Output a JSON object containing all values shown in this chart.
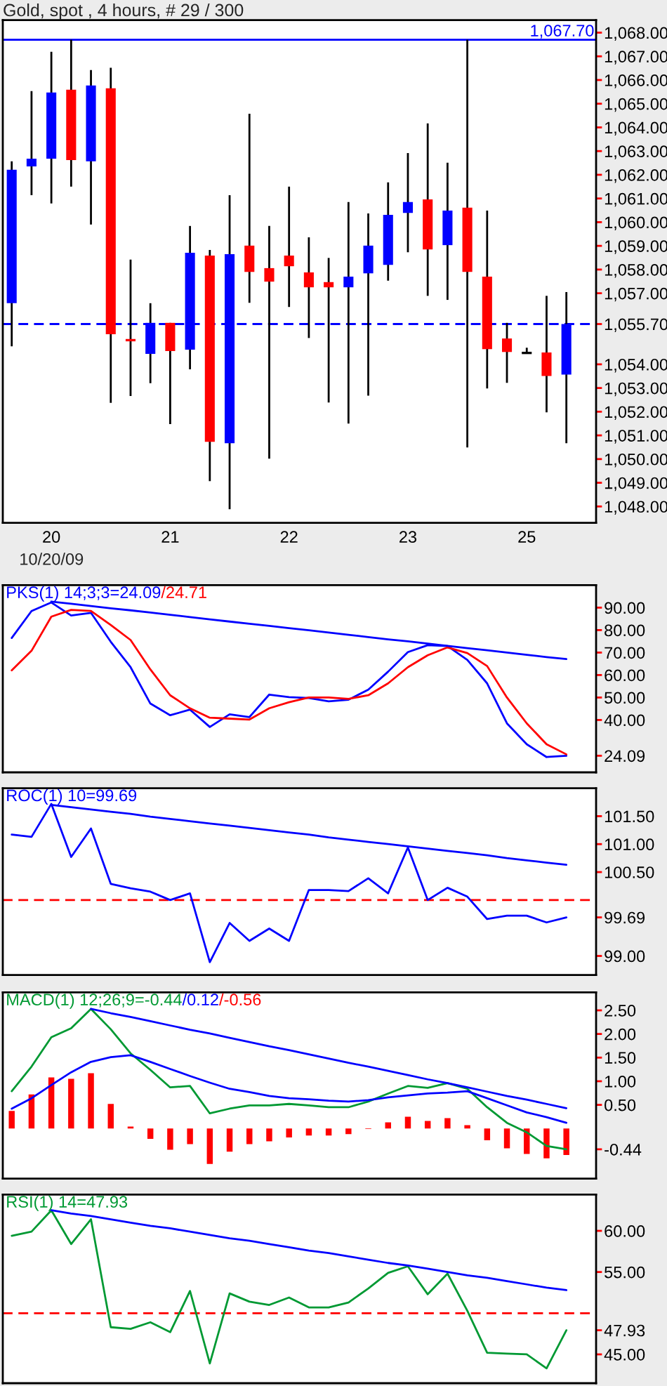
{
  "chart_data": [
    {
      "type": "candlestick",
      "title": "Gold, spot , 4 hours, # 29 / 300",
      "categories": [
        null,
        null,
        "20",
        null,
        null,
        null,
        null,
        null,
        "21",
        null,
        null,
        null,
        null,
        null,
        "22",
        null,
        null,
        null,
        null,
        null,
        "23",
        null,
        null,
        null,
        null,
        null,
        "25",
        null,
        null
      ],
      "ohlc": [
        [
          1056.58,
          1062.57,
          1054.76,
          1062.21
        ],
        [
          1062.35,
          1065.53,
          1061.14,
          1062.68
        ],
        [
          1062.68,
          1067.19,
          1060.79,
          1065.47
        ],
        [
          1065.59,
          1067.7,
          1061.5,
          1062.62
        ],
        [
          1062.57,
          1066.42,
          1059.9,
          1065.77
        ],
        [
          1065.65,
          1066.52,
          1052.37,
          1055.27
        ],
        [
          1055.02,
          1058.42,
          1052.66,
          1055.02
        ],
        [
          1054.44,
          1056.58,
          1053.2,
          1055.75
        ],
        [
          1055.75,
          1055.75,
          1051.48,
          1054.56
        ],
        [
          1054.62,
          1059.84,
          1053.79,
          1058.71
        ],
        [
          1058.59,
          1058.83,
          1049.07,
          1050.73
        ],
        [
          1050.67,
          1061.14,
          1047.88,
          1058.65
        ],
        [
          1059.01,
          1064.58,
          1056.6,
          1057.9
        ],
        [
          1058.06,
          1059.84,
          1050.02,
          1057.49
        ],
        [
          1058.59,
          1061.5,
          1056.42,
          1058.14
        ],
        [
          1057.88,
          1059.36,
          1055.11,
          1057.25
        ],
        [
          1057.47,
          1058.49,
          1052.39,
          1057.25
        ],
        [
          1057.25,
          1060.85,
          1051.5,
          1057.7
        ],
        [
          1057.84,
          1060.37,
          1052.68,
          1059.01
        ],
        [
          1058.2,
          1061.68,
          1057.53,
          1060.31
        ],
        [
          1060.39,
          1062.92,
          1058.73,
          1060.85
        ],
        [
          1060.96,
          1064.17,
          1056.89,
          1058.85
        ],
        [
          1059.03,
          1062.51,
          1056.72,
          1060.49
        ],
        [
          1060.61,
          1067.7,
          1050.49,
          1057.9
        ],
        [
          1057.7,
          1060.49,
          1052.98,
          1054.64
        ],
        [
          1055.09,
          1055.75,
          1053.22,
          1054.52
        ],
        [
          1054.48,
          1054.7,
          1054.48,
          1054.48
        ],
        [
          1054.5,
          1056.89,
          1051.97,
          1053.51
        ],
        [
          1053.57,
          1057.05,
          1050.67,
          1055.7
        ]
      ],
      "colors": [
        "#0000ff",
        "#0000ff",
        "#0000ff",
        "#ff0000",
        "#0000ff",
        "#ff0000",
        "#ff0000",
        "#0000ff",
        "#ff0000",
        "#0000ff",
        "#ff0000",
        "#0000ff",
        "#ff0000",
        "#ff0000",
        "#ff0000",
        "#ff0000",
        "#ff0000",
        "#0000ff",
        "#0000ff",
        "#0000ff",
        "#0000ff",
        "#ff0000",
        "#0000ff",
        "#ff0000",
        "#ff0000",
        "#ff0000",
        "#000000",
        "#ff0000",
        "#0000ff"
      ],
      "ylim": [
        1047.31,
        1068.53
      ],
      "yticks": [
        {
          "value": 1068,
          "label": "1,068.00"
        },
        {
          "value": 1067,
          "label": "1,067.00"
        },
        {
          "value": 1066,
          "label": "1,066.00"
        },
        {
          "value": 1065,
          "label": "1,065.00"
        },
        {
          "value": 1064,
          "label": "1,064.00"
        },
        {
          "value": 1063,
          "label": "1,063.00"
        },
        {
          "value": 1062,
          "label": "1,062.00"
        },
        {
          "value": 1061,
          "label": "1,061.00"
        },
        {
          "value": 1060,
          "label": "1,060.00"
        },
        {
          "value": 1059,
          "label": "1,059.00"
        },
        {
          "value": 1058,
          "label": "1,058.00"
        },
        {
          "value": 1057,
          "label": "1,057.00"
        },
        {
          "value": 1055.7,
          "label": "1,055.70"
        },
        {
          "value": 1054,
          "label": "1,054.00"
        },
        {
          "value": 1053,
          "label": "1,053.00"
        },
        {
          "value": 1052,
          "label": "1,052.00"
        },
        {
          "value": 1051,
          "label": "1,051.00"
        },
        {
          "value": 1050,
          "label": "1,050.00"
        },
        {
          "value": 1049,
          "label": "1,049.00"
        },
        {
          "value": 1048,
          "label": "1,048.00"
        }
      ],
      "ref_lines": [
        {
          "axis": "y",
          "value": 1067.7,
          "label": "1,067.70",
          "color": "#0000ff",
          "line_style": "solid"
        },
        {
          "axis": "y",
          "value": 1055.7,
          "color": "#0000ff",
          "line_style": "dashed"
        }
      ],
      "annotations": [
        "10/20/09"
      ],
      "grid": false,
      "legend": false
    },
    {
      "type": "line",
      "categories": [
        null,
        null,
        null,
        null,
        null,
        null,
        null,
        null,
        null,
        null,
        null,
        null,
        null,
        null,
        null,
        null,
        null,
        null,
        null,
        null,
        null,
        null,
        null,
        null,
        null,
        null,
        null,
        null,
        null
      ],
      "series": [
        {
          "name": "PKS(1) 14;3;3=24.09",
          "color": "#0000ff",
          "values": [
            76.5,
            88.5,
            92.3,
            86.5,
            87.7,
            74.8,
            63.5,
            47.3,
            42.1,
            44.6,
            36.9,
            42.5,
            41.3,
            51.3,
            50.2,
            49.8,
            48.3,
            49.0,
            53.5,
            61.5,
            70.2,
            73.3,
            72.9,
            66.7,
            56.3,
            38.5,
            29.2,
            23.5,
            24.09
          ]
        },
        {
          "name": "/24.71",
          "color": "#ff0000",
          "values": [
            62.1,
            70.8,
            86.0,
            89.0,
            88.5,
            82.3,
            75.6,
            62.5,
            51.0,
            45.2,
            41.0,
            40.6,
            40.2,
            45.2,
            47.9,
            50.0,
            50.0,
            49.4,
            51.0,
            56.3,
            63.5,
            68.8,
            72.3,
            69.8,
            64.0,
            50.0,
            38.5,
            29.2,
            24.71
          ]
        },
        {
          "type": "line",
          "color": "#0000ff",
          "values": [
            null,
            null,
            92.7,
            91.7,
            90.7,
            89.7,
            88.8,
            87.8,
            86.8,
            85.8,
            84.8,
            83.8,
            82.8,
            81.9,
            80.9,
            79.9,
            78.9,
            77.9,
            76.9,
            75.9,
            75.0,
            74.0,
            73.0,
            72.0,
            71.0,
            70.0,
            69.0,
            68.0,
            67.1
          ]
        }
      ],
      "ylim": [
        16.7,
        100
      ],
      "yticks": [
        {
          "value": 90,
          "label": "90.00"
        },
        {
          "value": 80,
          "label": "80.00"
        },
        {
          "value": 70,
          "label": "70.00"
        },
        {
          "value": 60,
          "label": "60.00"
        },
        {
          "value": 50,
          "label": "50.00"
        },
        {
          "value": 40,
          "label": "40.00"
        },
        {
          "value": 24.09,
          "label": "24.09"
        }
      ],
      "tick_labels": "y",
      "grid": false,
      "legend": "top left"
    },
    {
      "type": "line",
      "categories": [
        null,
        null,
        null,
        null,
        null,
        null,
        null,
        null,
        null,
        null,
        null,
        null,
        null,
        null,
        null,
        null,
        null,
        null,
        null,
        null,
        null,
        null,
        null,
        null,
        null,
        null,
        null,
        null,
        null
      ],
      "series": [
        {
          "name": "ROC(1) 10=99.69",
          "color": "#0000ff",
          "values": [
            101.17,
            101.13,
            101.72,
            100.77,
            101.28,
            100.29,
            100.21,
            100.15,
            100.0,
            100.12,
            98.89,
            99.59,
            99.27,
            99.49,
            99.27,
            100.18,
            100.18,
            100.16,
            100.39,
            100.12,
            100.94,
            100.0,
            100.22,
            100.06,
            99.66,
            99.72,
            99.72,
            99.6,
            99.69
          ]
        },
        {
          "type": "line",
          "color": "#0000ff",
          "values": [
            null,
            null,
            101.7,
            101.66,
            101.62,
            101.58,
            101.54,
            101.49,
            101.45,
            101.41,
            101.37,
            101.33,
            101.29,
            101.25,
            101.21,
            101.17,
            101.12,
            101.08,
            101.04,
            101.0,
            100.96,
            100.92,
            100.88,
            100.84,
            100.8,
            100.75,
            100.71,
            100.67,
            100.63
          ]
        }
      ],
      "ref_lines": [
        {
          "axis": "y",
          "value": 100,
          "color": "#ff0000",
          "line_style": "dashed"
        }
      ],
      "ylim": [
        98.66,
        102.0
      ],
      "yticks": [
        {
          "value": 101.5,
          "label": "101.50"
        },
        {
          "value": 101,
          "label": "101.00"
        },
        {
          "value": 100.5,
          "label": "100.50"
        },
        {
          "value": 99.69,
          "label": "99.69"
        },
        {
          "value": 99,
          "label": "99.00"
        }
      ],
      "tick_labels": "y",
      "grid": false,
      "legend": "top left"
    },
    {
      "type": "line",
      "categories": [
        null,
        null,
        null,
        null,
        null,
        null,
        null,
        null,
        null,
        null,
        null,
        null,
        null,
        null,
        null,
        null,
        null,
        null,
        null,
        null,
        null,
        null,
        null,
        null,
        null,
        null,
        null,
        null,
        null
      ],
      "series": [
        {
          "name": "MACD(1) 12;26;9=-0.44",
          "color": "#009933",
          "values": [
            0.79,
            1.31,
            1.93,
            2.12,
            2.53,
            2.1,
            1.59,
            1.24,
            0.87,
            0.9,
            0.32,
            0.42,
            0.49,
            0.49,
            0.52,
            0.49,
            0.45,
            0.45,
            0.57,
            0.74,
            0.9,
            0.86,
            0.96,
            0.84,
            0.45,
            0.12,
            -0.08,
            -0.37,
            -0.44
          ]
        },
        {
          "name": "/0.12",
          "color": "#0000ff",
          "values": [
            0.42,
            0.64,
            0.92,
            1.19,
            1.41,
            1.51,
            1.55,
            1.41,
            1.26,
            1.11,
            0.97,
            0.84,
            0.77,
            0.69,
            0.64,
            0.62,
            0.59,
            0.57,
            0.6,
            0.66,
            0.7,
            0.74,
            0.76,
            0.79,
            0.64,
            0.49,
            0.34,
            0.24,
            0.12
          ]
        },
        {
          "name": "/-0.56",
          "type": "bar",
          "color": "#ff0000",
          "values": [
            0.37,
            0.72,
            1.08,
            1.05,
            1.17,
            0.52,
            0.04,
            -0.22,
            -0.45,
            -0.33,
            -0.75,
            -0.49,
            -0.33,
            -0.27,
            -0.19,
            -0.15,
            -0.15,
            -0.12,
            -0.01,
            0.13,
            0.25,
            0.16,
            0.22,
            0.07,
            -0.25,
            -0.42,
            -0.54,
            -0.63,
            -0.56
          ]
        },
        {
          "type": "line",
          "color": "#0000ff",
          "values": [
            null,
            null,
            null,
            null,
            2.53,
            2.44,
            2.36,
            2.27,
            2.18,
            2.09,
            2.01,
            1.92,
            1.83,
            1.74,
            1.66,
            1.57,
            1.48,
            1.39,
            1.31,
            1.22,
            1.13,
            1.04,
            0.96,
            0.87,
            0.78,
            0.69,
            0.61,
            0.52,
            0.43
          ]
        }
      ],
      "ylim": [
        -1.06,
        2.88
      ],
      "yticks": [
        {
          "value": 2.5,
          "label": "2.50"
        },
        {
          "value": 2,
          "label": "2.00"
        },
        {
          "value": 1.5,
          "label": "1.50"
        },
        {
          "value": 1,
          "label": "1.00"
        },
        {
          "value": 0.5,
          "label": "0.50"
        },
        {
          "value": -0.44,
          "label": "-0.44"
        }
      ],
      "tick_labels": "y",
      "grid": false,
      "legend": "top left"
    },
    {
      "type": "line",
      "categories": [
        null,
        null,
        null,
        null,
        null,
        null,
        null,
        null,
        null,
        null,
        null,
        null,
        null,
        null,
        null,
        null,
        null,
        null,
        null,
        null,
        null,
        null,
        null,
        null,
        null,
        null,
        null,
        null,
        null
      ],
      "series": [
        {
          "name": "RSI(1) 14=47.93",
          "color": "#009933",
          "values": [
            59.4,
            59.9,
            62.5,
            58.4,
            61.4,
            48.3,
            48.1,
            48.9,
            47.7,
            52.7,
            43.9,
            52.4,
            51.4,
            51.0,
            51.9,
            50.7,
            50.7,
            51.3,
            53.0,
            54.9,
            55.7,
            52.3,
            54.8,
            50.3,
            45.2,
            45.1,
            45.0,
            43.3,
            47.93
          ]
        },
        {
          "type": "line",
          "color": "#0000ff",
          "values": [
            null,
            null,
            62.5,
            62.1,
            61.8,
            61.4,
            61.0,
            60.6,
            60.3,
            59.9,
            59.5,
            59.1,
            58.8,
            58.4,
            58.0,
            57.6,
            57.3,
            56.9,
            56.5,
            56.1,
            55.8,
            55.4,
            55.0,
            54.6,
            54.3,
            53.9,
            53.5,
            53.1,
            52.8
          ]
        }
      ],
      "ref_lines": [
        {
          "axis": "y",
          "value": 50,
          "color": "#ff0000",
          "line_style": "dashed"
        }
      ],
      "ylim": [
        41.5,
        64.4
      ],
      "yticks": [
        {
          "value": 60,
          "label": "60.00"
        },
        {
          "value": 55,
          "label": "55.00"
        },
        {
          "value": 47.93,
          "label": "47.93"
        },
        {
          "value": 45,
          "label": "45.00"
        }
      ],
      "tick_labels": "y",
      "grid": false,
      "legend": "top left"
    }
  ]
}
